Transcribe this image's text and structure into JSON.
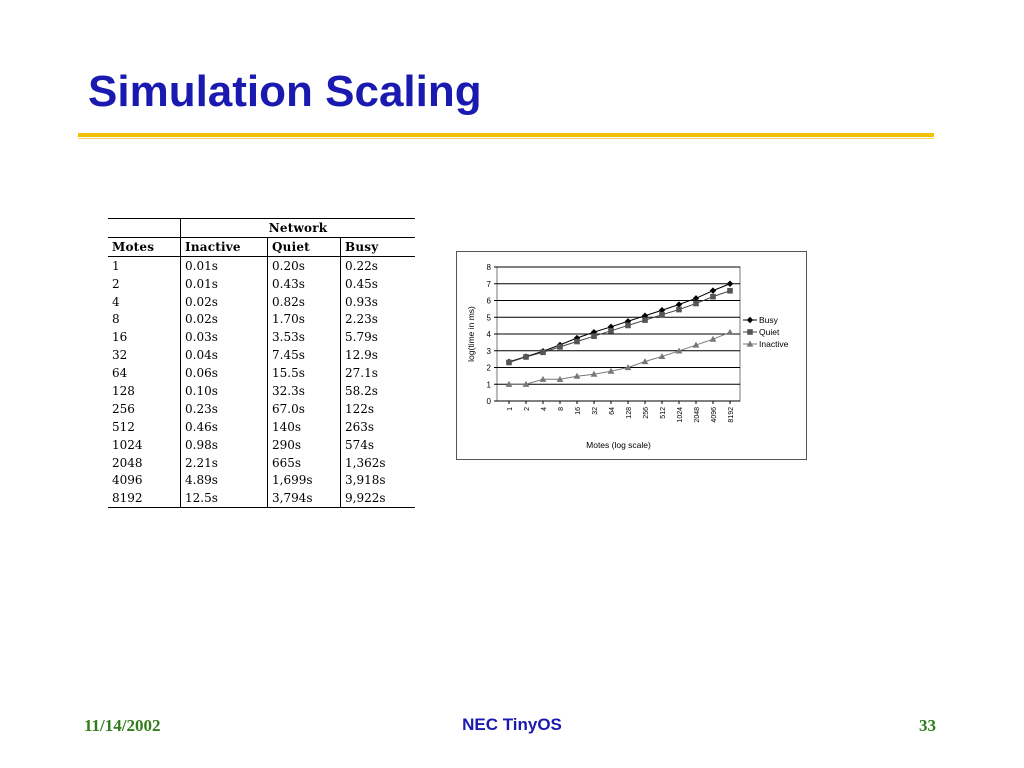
{
  "slide": {
    "title": "Simulation Scaling",
    "footer": {
      "date": "11/14/2002",
      "center": "NEC TinyOS",
      "page": "33"
    }
  },
  "colors": {
    "title": "#1a1ab0",
    "rule": "#f2c200",
    "footer_green": "#2f7d1a",
    "footer_blue": "#1a1ab0"
  },
  "table": {
    "group_header": "Network",
    "headers": [
      "Motes",
      "Inactive",
      "Quiet",
      "Busy"
    ],
    "rows": [
      [
        "1",
        "0.01s",
        "0.20s",
        "0.22s"
      ],
      [
        "2",
        "0.01s",
        "0.43s",
        "0.45s"
      ],
      [
        "4",
        "0.02s",
        "0.82s",
        "0.93s"
      ],
      [
        "8",
        "0.02s",
        "1.70s",
        "2.23s"
      ],
      [
        "16",
        "0.03s",
        "3.53s",
        "5.79s"
      ],
      [
        "32",
        "0.04s",
        "7.45s",
        "12.9s"
      ],
      [
        "64",
        "0.06s",
        "15.5s",
        "27.1s"
      ],
      [
        "128",
        "0.10s",
        "32.3s",
        "58.2s"
      ],
      [
        "256",
        "0.23s",
        "67.0s",
        "122s"
      ],
      [
        "512",
        "0.46s",
        "140s",
        "263s"
      ],
      [
        "1024",
        "0.98s",
        "290s",
        "574s"
      ],
      [
        "2048",
        "2.21s",
        "665s",
        "1,362s"
      ],
      [
        "4096",
        "4.89s",
        "1,699s",
        "3,918s"
      ],
      [
        "8192",
        "12.5s",
        "3,794s",
        "9,922s"
      ]
    ]
  },
  "chart_data": {
    "type": "line",
    "xlabel": "Motes (log scale)",
    "ylabel": "log(time in ms)",
    "categories": [
      "1",
      "2",
      "4",
      "8",
      "16",
      "32",
      "64",
      "128",
      "256",
      "512",
      "1024",
      "2048",
      "4096",
      "8192"
    ],
    "ylim": [
      0,
      8
    ],
    "yticks": [
      "0",
      "1",
      "2",
      "3",
      "4",
      "5",
      "6",
      "7",
      "8"
    ],
    "grid": true,
    "legend_position": "right",
    "series": [
      {
        "name": "Busy",
        "marker": "diamond",
        "values": [
          2.34,
          2.65,
          2.97,
          3.35,
          3.76,
          4.11,
          4.43,
          4.76,
          5.09,
          5.42,
          5.76,
          6.13,
          6.59,
          7.0
        ]
      },
      {
        "name": "Quiet",
        "marker": "square",
        "values": [
          2.3,
          2.63,
          2.91,
          3.23,
          3.55,
          3.87,
          4.19,
          4.51,
          4.83,
          5.15,
          5.46,
          5.82,
          6.23,
          6.58
        ]
      },
      {
        "name": "Inactive",
        "marker": "triangle",
        "values": [
          1.0,
          1.0,
          1.3,
          1.3,
          1.48,
          1.6,
          1.78,
          2.0,
          2.36,
          2.66,
          2.99,
          3.34,
          3.69,
          4.1
        ]
      }
    ]
  }
}
